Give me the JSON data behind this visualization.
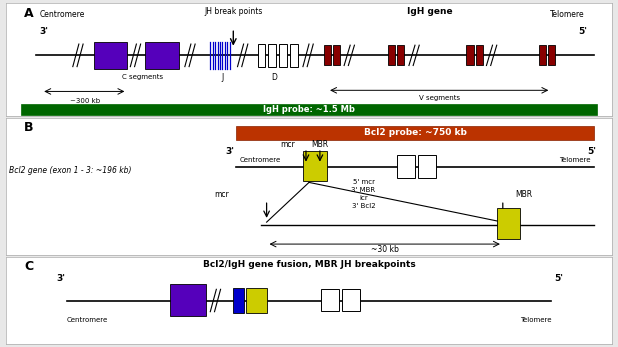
{
  "bg_color": "#e8e8e8",
  "panel_bg": "#ffffff",
  "color_green": "#006600",
  "color_red_probe": "#bb3300",
  "color_purple": "#5500bb",
  "color_blue_J": "#0000cc",
  "color_darkred": "#880000",
  "color_yellow": "#cccc00",
  "label_A": "A",
  "label_B": "B",
  "label_C": "C",
  "label_centromere": "Centromere",
  "label_telomere": "Telomere",
  "label_3p": "3'",
  "label_5p": "5'",
  "label_JH_break": "JH break points",
  "label_IgH_gene": "IgH gene",
  "label_IgH_probe": "IgH probe: ~1.5 Mb",
  "label_300kb": "~300 kb",
  "label_C_seg": "C segments",
  "label_J": "J",
  "label_D": "D",
  "label_V_seg": "V segments",
  "label_Bcl2_probe": "Bcl2 probe: ~750 kb",
  "label_Bcl2_gene": "Bcl2 gene (exon 1 - 3: ~196 kb)",
  "label_MBR": "MBR",
  "label_mcr": "mcr",
  "label_5mcr": "5' mcr",
  "label_3MBR": "3' MBR",
  "label_icr": "icr",
  "label_3Bcl2": "3' Bcl2",
  "label_30kb": "~30 kb",
  "label_fusion": "Bcl2/IgH gene fusion, MBR JH breakpoints"
}
